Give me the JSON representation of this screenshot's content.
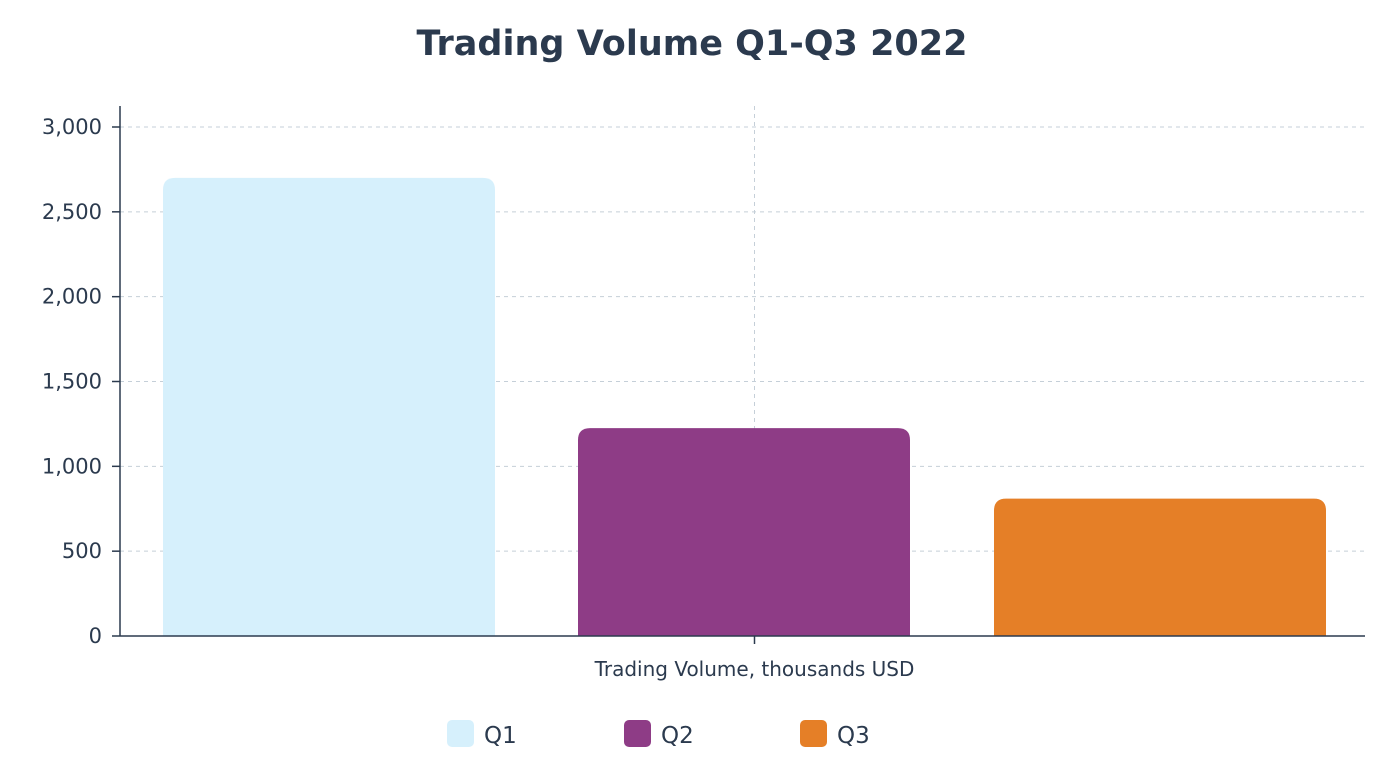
{
  "chart_data": {
    "type": "bar",
    "title": "Trading Volume Q1-Q3 2022",
    "xlabel": "Trading Volume, thousands USD",
    "ylabel": "",
    "categories": [
      "Trading Volume, thousands USD"
    ],
    "series": [
      {
        "name": "Q1",
        "values": [
          2700
        ],
        "color": "#d6f0fc"
      },
      {
        "name": "Q2",
        "values": [
          1225
        ],
        "color": "#8e3c86"
      },
      {
        "name": "Q3",
        "values": [
          810
        ],
        "color": "#e57f27"
      }
    ],
    "ylim": [
      0,
      3000
    ],
    "yticks": [
      0,
      500,
      1000,
      1500,
      2000,
      2500,
      3000
    ],
    "ytick_labels": [
      "0",
      "500",
      "1,000",
      "1,500",
      "2,000",
      "2,500",
      "3,000"
    ],
    "grid": true,
    "legend": "bottom"
  }
}
